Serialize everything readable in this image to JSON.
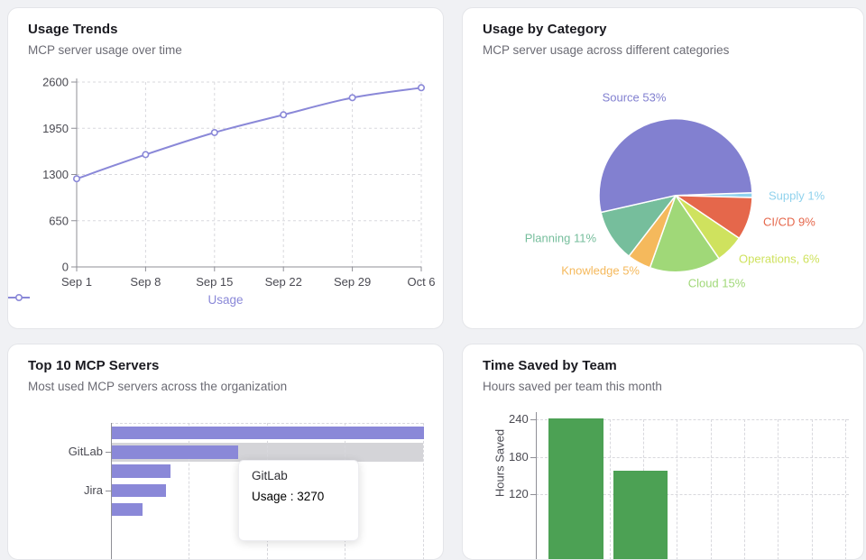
{
  "page": {
    "background": "#f0f1f4"
  },
  "cards": {
    "usage_trends": {
      "title": "Usage Trends",
      "subtitle": "MCP server usage over time"
    },
    "usage_by_category": {
      "title": "Usage by Category",
      "subtitle": "MCP server usage across different categories"
    },
    "top_servers": {
      "title": "Top 10 MCP Servers",
      "subtitle": "Most used MCP servers across the organization"
    },
    "time_saved": {
      "title": "Time Saved by Team",
      "subtitle": "Hours saved per team this month"
    }
  },
  "tooltip": {
    "title": "GitLab",
    "series": "Usage",
    "value": "3270",
    "display": "Usage : 3270",
    "value_color": "#8a88d8"
  },
  "colors": {
    "accent_purple": "#8a88d8",
    "bar_green": "#4ca154",
    "grid": "#d8d8dd",
    "axis": "#8f8f96",
    "tick_text": "#4a4a52",
    "hover_band": "#d4d4d8"
  },
  "chart_data": [
    {
      "type": "line",
      "title": "Usage Trends",
      "x": [
        "Sep 1",
        "Sep 8",
        "Sep 15",
        "Sep 22",
        "Sep 29",
        "Oct 6"
      ],
      "series": [
        {
          "name": "Usage",
          "values": [
            1240,
            1580,
            1890,
            2140,
            2380,
            2520
          ]
        }
      ],
      "yticks": [
        0,
        650,
        1300,
        1950,
        2600
      ],
      "ylim": [
        0,
        2600
      ],
      "legend": [
        "Usage"
      ],
      "legend_position": "bottom",
      "grid": true,
      "color": "#8a88d8",
      "marker": "hollow-circle"
    },
    {
      "type": "pie",
      "title": "Usage by Category",
      "slices": [
        {
          "name": "Supply",
          "pct": 1,
          "label": "Supply 1%",
          "color": "#90d2ed"
        },
        {
          "name": "CI/CD",
          "pct": 9,
          "label": "CI/CD 9%",
          "color": "#e5674b"
        },
        {
          "name": "Operations",
          "pct": 6,
          "label": "Operations, 6%",
          "color": "#cfe25e"
        },
        {
          "name": "Cloud",
          "pct": 15,
          "label": "Cloud 15%",
          "color": "#a0d878"
        },
        {
          "name": "Knowledge",
          "pct": 5,
          "label": "Knowledge 5%",
          "color": "#f5b95c"
        },
        {
          "name": "Planning",
          "pct": 11,
          "label": "Planning 11%",
          "color": "#76be9c"
        },
        {
          "name": "Source",
          "pct": 53,
          "label": "Source 53%",
          "color": "#8280d0"
        }
      ],
      "legend_position": "none"
    },
    {
      "type": "bar",
      "orientation": "horizontal",
      "title": "Top 10 MCP Servers",
      "visible_categories": [
        "",
        "GitLab",
        "",
        "Jira",
        ""
      ],
      "values": [
        8050,
        3270,
        1510,
        1400,
        790
      ],
      "bar_pct": [
        100,
        40.6,
        18.8,
        17.3,
        9.8
      ],
      "xlim": [
        0,
        8050
      ],
      "highlighted_category": "GitLab",
      "highlighted_index": 1,
      "color": "#8a88d8",
      "grid": true
    },
    {
      "type": "bar",
      "orientation": "vertical",
      "title": "Time Saved by Team",
      "ylabel": "Hours Saved",
      "yticks": [
        120,
        180,
        240
      ],
      "categories": [
        "",
        ""
      ],
      "values": [
        242,
        158
      ],
      "color": "#4ca154",
      "grid": true
    }
  ]
}
